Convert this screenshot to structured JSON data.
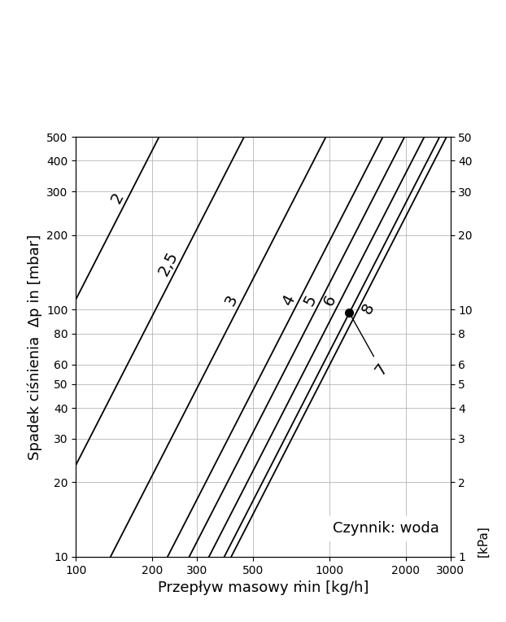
{
  "chart_data": {
    "type": "line",
    "x_label": "Przepływ masowy ṁin [kg/h]",
    "y_label": "Spadek ciśnienia  Δp in [mbar]",
    "y2_label": "[kPa]",
    "annotations": [
      "Czynnik: woda"
    ],
    "log": true,
    "grid": true,
    "xlim": [
      100,
      3000
    ],
    "xticks": [
      100,
      200,
      300,
      500,
      1000,
      2000,
      3000
    ],
    "ylim": [
      10,
      500
    ],
    "yticks": [
      10,
      20,
      30,
      40,
      50,
      60,
      80,
      100,
      200,
      300,
      400,
      500
    ],
    "y2lim": [
      1,
      50
    ],
    "y2ticks": [
      1,
      2,
      3,
      4,
      5,
      6,
      8,
      10,
      20,
      30,
      40,
      50
    ],
    "series": [
      {
        "name": "2",
        "color": "#000000",
        "x": [
          100,
          213
        ],
        "values": [
          110,
          500
        ]
      },
      {
        "name": "2,5",
        "color": "#000000",
        "x": [
          100,
          461
        ],
        "values": [
          23.5,
          500
        ]
      },
      {
        "name": "3",
        "color": "#000000",
        "x": [
          137,
          969
        ],
        "values": [
          10,
          500
        ]
      },
      {
        "name": "4",
        "color": "#000000",
        "x": [
          230,
          1626
        ],
        "values": [
          10,
          500
        ]
      },
      {
        "name": "5",
        "color": "#000000",
        "x": [
          280,
          1980
        ],
        "values": [
          10,
          500
        ]
      },
      {
        "name": "6",
        "color": "#000000",
        "x": [
          335,
          2369
        ],
        "values": [
          10,
          500
        ]
      },
      {
        "name": "7",
        "color": "#000000",
        "x": [
          385,
          1199,
          2722
        ],
        "values": [
          10,
          97,
          500
        ],
        "marker": "o"
      },
      {
        "name": "8",
        "color": "#000000",
        "x": [
          410,
          2899
        ],
        "values": [
          10,
          500
        ]
      }
    ]
  }
}
